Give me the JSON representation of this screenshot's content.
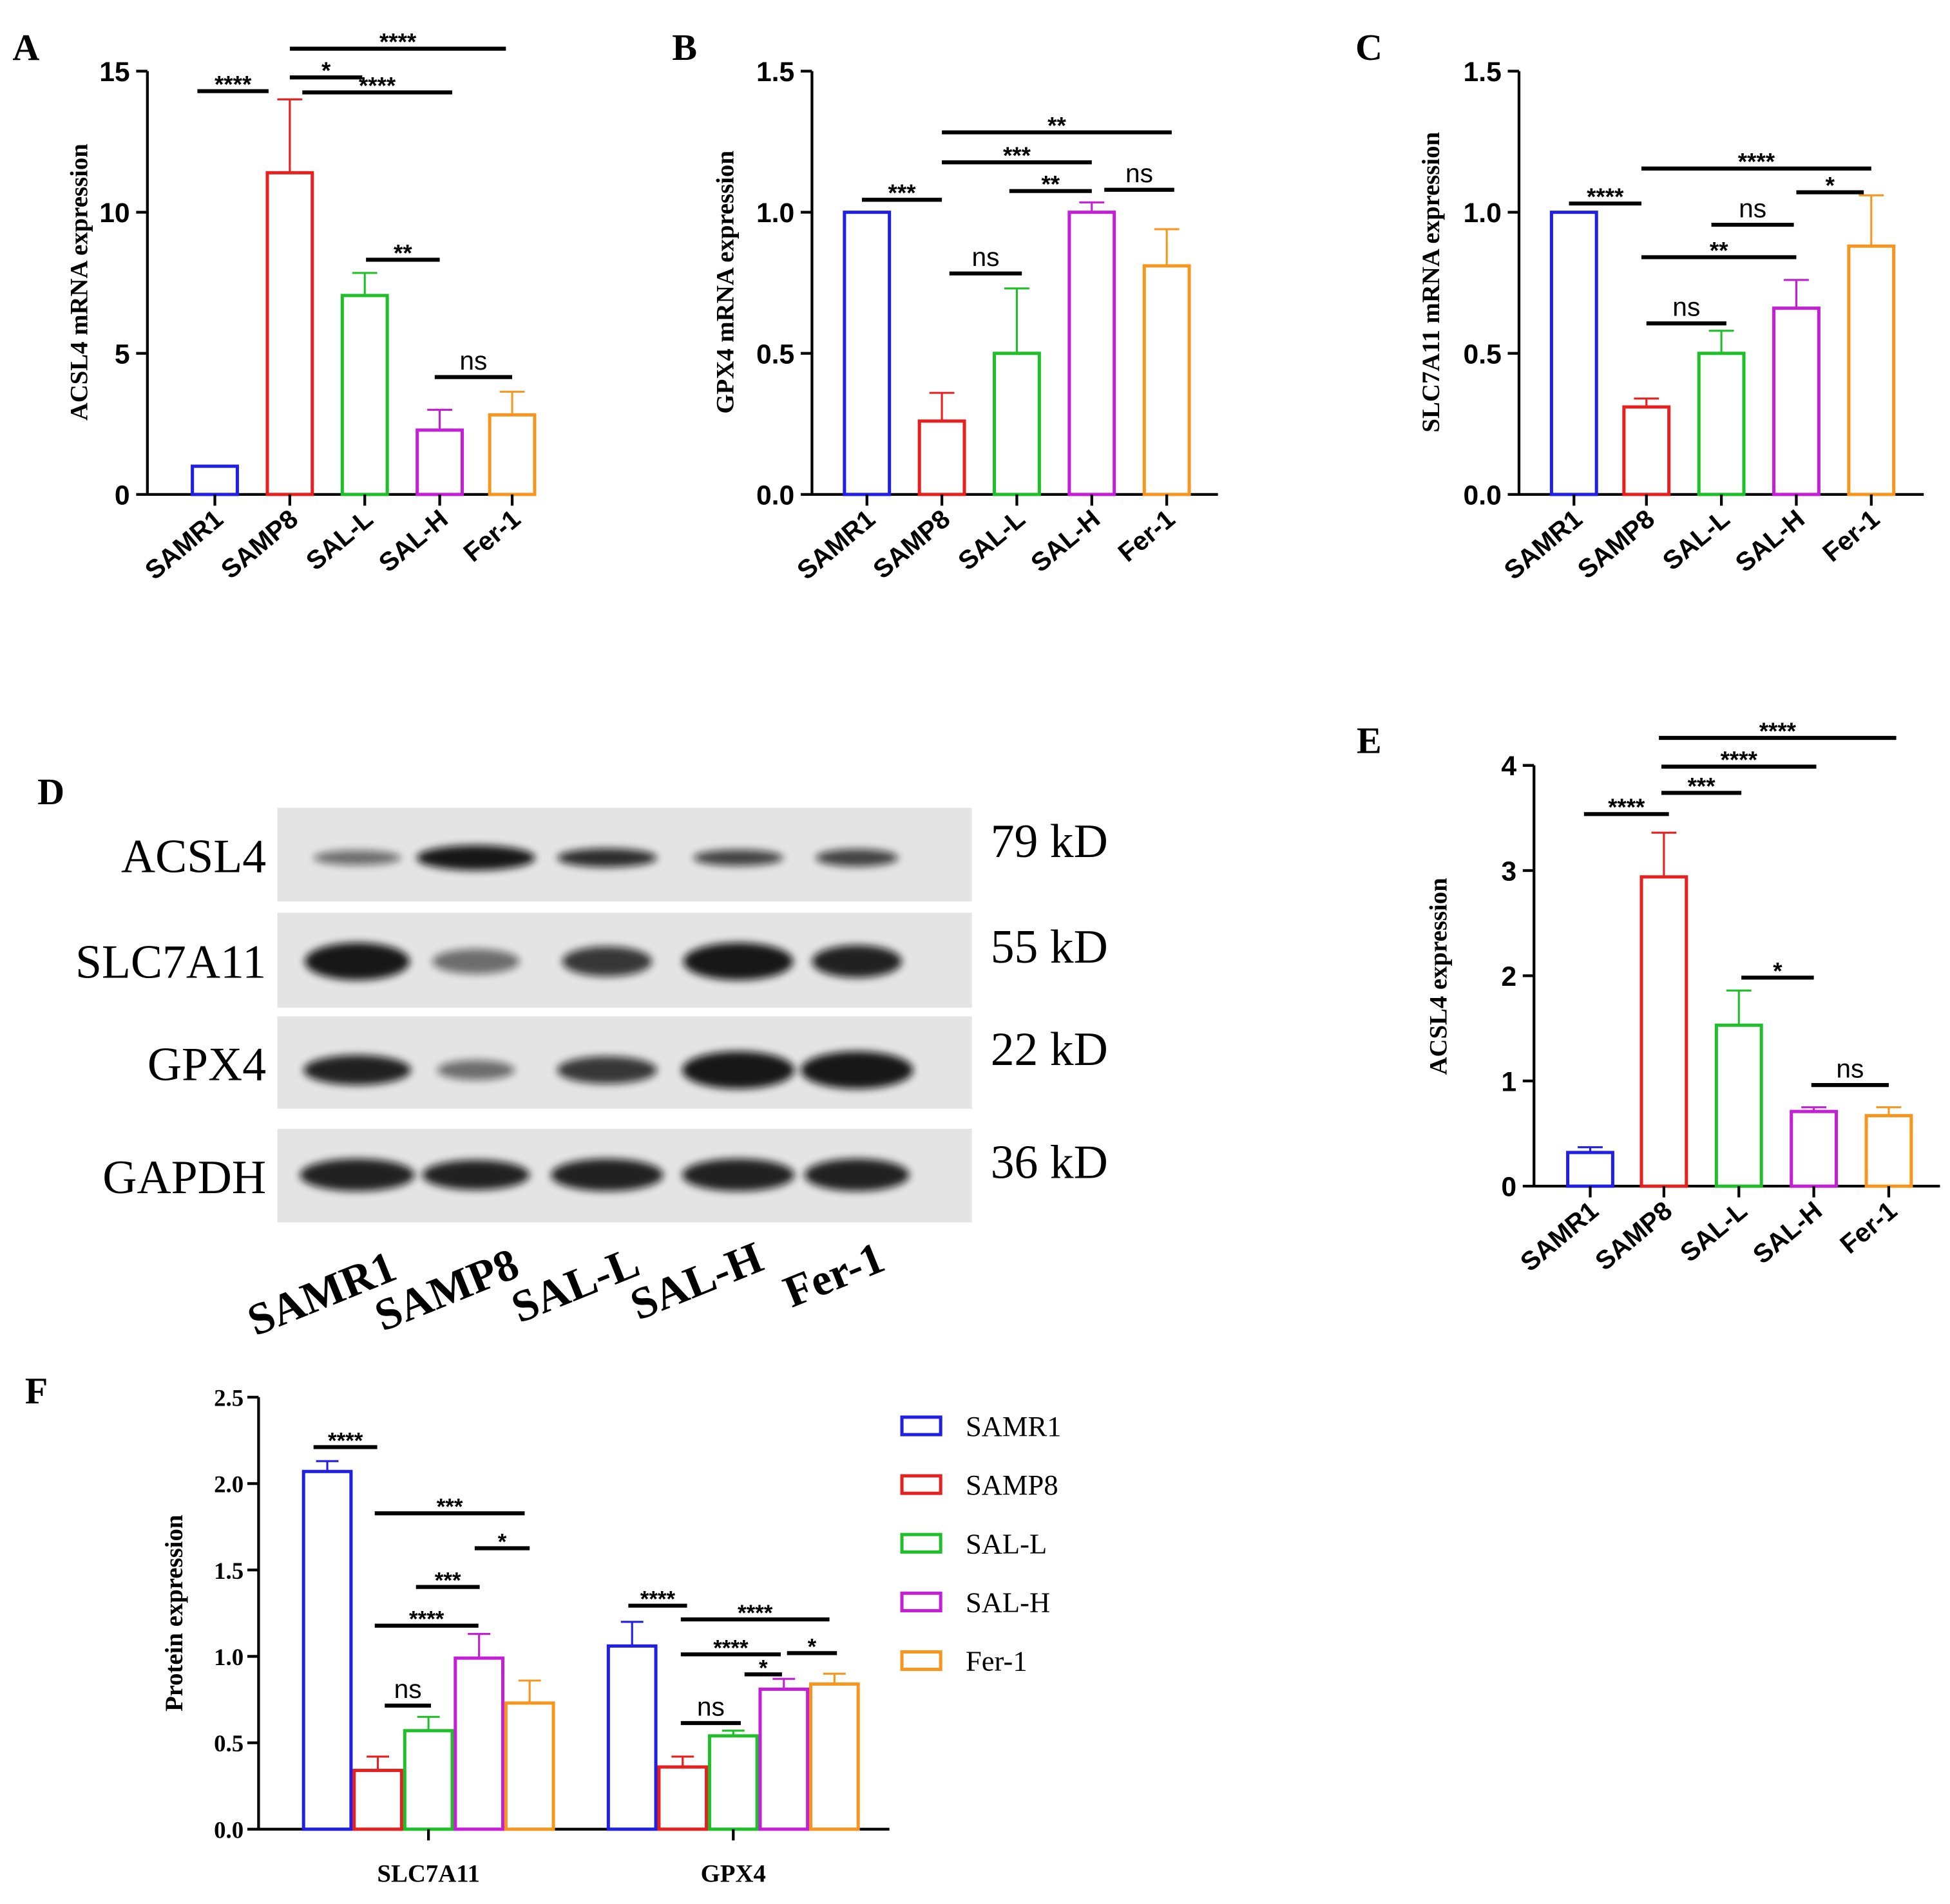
{
  "colors": {
    "SAMR1": "#1f1fe6",
    "SAMP8": "#e61f1f",
    "SAL-L": "#1fbf2a",
    "SAL-H": "#c41fd6",
    "Fer-1": "#f7961e"
  },
  "groups": [
    "SAMR1",
    "SAMP8",
    "SAL-L",
    "SAL-H",
    "Fer-1"
  ],
  "blot": {
    "letter": "D",
    "bands": [
      {
        "protein": "ACSL4",
        "size": "79 kD"
      },
      {
        "protein": "SLC7A11",
        "size": "55 kD"
      },
      {
        "protein": "GPX4",
        "size": "22 kD"
      },
      {
        "protein": "GAPDH",
        "size": "36 kD"
      }
    ],
    "lanes": [
      "SAMR1",
      "SAMP8",
      "SAL-L",
      "SAL-H",
      "Fer-1"
    ]
  },
  "chart_data": [
    {
      "letter": "A",
      "type": "bar",
      "ylabel": "ACSL4 mRNA expression",
      "categories": [
        "SAMR1",
        "SAMP8",
        "SAL-L",
        "SAL-H",
        "Fer-1"
      ],
      "values": [
        1.0,
        11.4,
        7.05,
        2.28,
        2.82
      ],
      "errors": [
        0,
        2.6,
        0.8,
        0.72,
        0.82
      ],
      "ylim": [
        0,
        15
      ],
      "yticks": [
        "0",
        "5",
        "10",
        "15"
      ],
      "significance": [
        {
          "from": "SAMR1",
          "to": "SAMP8",
          "label": "****"
        },
        {
          "from": "SAMP8",
          "to": "SAL-L",
          "label": "*"
        },
        {
          "from": "SAMP8",
          "to": "SAL-H",
          "label": "****"
        },
        {
          "from": "SAMP8",
          "to": "Fer-1",
          "label": "****"
        },
        {
          "from": "SAL-L",
          "to": "SAL-H",
          "label": "**"
        },
        {
          "from": "SAL-H",
          "to": "Fer-1",
          "label": "ns"
        }
      ]
    },
    {
      "letter": "B",
      "type": "bar",
      "ylabel": "GPX4 mRNA expression",
      "categories": [
        "SAMR1",
        "SAMP8",
        "SAL-L",
        "SAL-H",
        "Fer-1"
      ],
      "values": [
        1.0,
        0.26,
        0.5,
        1.0,
        0.81
      ],
      "errors": [
        0,
        0.1,
        0.23,
        0.035,
        0.13
      ],
      "ylim": [
        0,
        1.5
      ],
      "yticks": [
        "0.0",
        "0.5",
        "1.0",
        "1.5"
      ],
      "significance": [
        {
          "from": "SAMR1",
          "to": "SAMP8",
          "label": "***"
        },
        {
          "from": "SAMP8",
          "to": "SAL-L",
          "label": "ns"
        },
        {
          "from": "SAMP8",
          "to": "SAL-H",
          "label": "***"
        },
        {
          "from": "SAMP8",
          "to": "Fer-1",
          "label": "**"
        },
        {
          "from": "SAL-L",
          "to": "SAL-H",
          "label": "**"
        },
        {
          "from": "SAL-H",
          "to": "Fer-1",
          "label": "ns"
        }
      ]
    },
    {
      "letter": "C",
      "type": "bar",
      "ylabel": "SLC7A11 mRNA expression",
      "categories": [
        "SAMR1",
        "SAMP8",
        "SAL-L",
        "SAL-H",
        "Fer-1"
      ],
      "values": [
        1.0,
        0.31,
        0.5,
        0.66,
        0.88
      ],
      "errors": [
        0,
        0.03,
        0.08,
        0.1,
        0.18
      ],
      "ylim": [
        0,
        1.5
      ],
      "yticks": [
        "0.0",
        "0.5",
        "1.0",
        "1.5"
      ],
      "significance": [
        {
          "from": "SAMR1",
          "to": "SAMP8",
          "label": "****"
        },
        {
          "from": "SAMP8",
          "to": "SAL-L",
          "label": "ns"
        },
        {
          "from": "SAMP8",
          "to": "SAL-H",
          "label": "**"
        },
        {
          "from": "SAMP8",
          "to": "Fer-1",
          "label": "****"
        },
        {
          "from": "SAL-L",
          "to": "SAL-H",
          "label": "ns"
        },
        {
          "from": "SAL-H",
          "to": "Fer-1",
          "label": "*"
        }
      ]
    },
    {
      "letter": "E",
      "type": "bar",
      "ylabel": "ACSL4 expression",
      "categories": [
        "SAMR1",
        "SAMP8",
        "SAL-L",
        "SAL-H",
        "Fer-1"
      ],
      "values": [
        0.32,
        2.94,
        1.53,
        0.71,
        0.67
      ],
      "errors": [
        0.05,
        0.42,
        0.33,
        0.04,
        0.08
      ],
      "ylim": [
        0,
        4
      ],
      "yticks": [
        "0",
        "1",
        "2",
        "3",
        "4"
      ],
      "significance": [
        {
          "from": "SAMR1",
          "to": "SAMP8",
          "label": "****"
        },
        {
          "from": "SAMP8",
          "to": "SAL-L",
          "label": "***"
        },
        {
          "from": "SAMP8",
          "to": "SAL-H",
          "label": "****"
        },
        {
          "from": "SAMP8",
          "to": "Fer-1",
          "label": "****"
        },
        {
          "from": "SAL-L",
          "to": "SAL-H",
          "label": "*"
        },
        {
          "from": "SAL-H",
          "to": "Fer-1",
          "label": "ns"
        }
      ]
    },
    {
      "letter": "F",
      "type": "bar",
      "ylabel": "Protein expression",
      "categories": [
        "SLC7A11",
        "GPX4"
      ],
      "series": [
        {
          "name": "SAMR1",
          "values": [
            2.07,
            1.06
          ],
          "errors": [
            0.06,
            0.14
          ]
        },
        {
          "name": "SAMP8",
          "values": [
            0.34,
            0.36
          ],
          "errors": [
            0.08,
            0.06
          ]
        },
        {
          "name": "SAL-L",
          "values": [
            0.57,
            0.54
          ],
          "errors": [
            0.08,
            0.03
          ]
        },
        {
          "name": "SAL-H",
          "values": [
            0.99,
            0.81
          ],
          "errors": [
            0.14,
            0.06
          ]
        },
        {
          "name": "Fer-1",
          "values": [
            0.73,
            0.84
          ],
          "errors": [
            0.13,
            0.06
          ]
        }
      ],
      "ylim": [
        0,
        2.5
      ],
      "yticks": [
        "0.0",
        "0.5",
        "1.0",
        "1.5",
        "2.0",
        "2.5"
      ],
      "legend": "right",
      "significance": [
        {
          "category": "SLC7A11",
          "from": "SAMR1",
          "to": "SAMP8",
          "label": "****"
        },
        {
          "category": "SLC7A11",
          "from": "SAMP8",
          "to": "SAL-L",
          "label": "ns"
        },
        {
          "category": "SLC7A11",
          "from": "SAMP8",
          "to": "SAL-H",
          "label": "****"
        },
        {
          "category": "SLC7A11",
          "from": "SAL-L",
          "to": "SAL-H",
          "label": "***"
        },
        {
          "category": "SLC7A11",
          "from": "SAMP8",
          "to": "Fer-1",
          "label": "***"
        },
        {
          "category": "SLC7A11",
          "from": "SAL-H",
          "to": "Fer-1",
          "label": "*"
        },
        {
          "category": "GPX4",
          "from": "SAMR1",
          "to": "SAMP8",
          "label": "****"
        },
        {
          "category": "GPX4",
          "from": "SAMP8",
          "to": "SAL-L",
          "label": "ns"
        },
        {
          "category": "GPX4",
          "from": "SAL-L",
          "to": "SAL-H",
          "label": "*"
        },
        {
          "category": "GPX4",
          "from": "SAMP8",
          "to": "SAL-H",
          "label": "****"
        },
        {
          "category": "GPX4",
          "from": "SAMP8",
          "to": "Fer-1",
          "label": "****"
        },
        {
          "category": "GPX4",
          "from": "SAL-H",
          "to": "Fer-1",
          "label": "*"
        }
      ]
    }
  ]
}
